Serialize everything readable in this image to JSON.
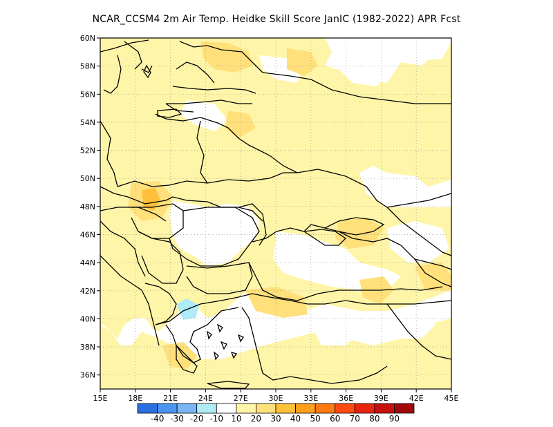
{
  "title": "NCAR_CCSM4  2m Air Temp. Heidke Skill Score JanIC (1982-2022) APR Fcst",
  "map": {
    "lon_range": [
      15,
      45
    ],
    "lat_range": [
      35,
      60
    ],
    "x_ticks": [
      "15E",
      "18E",
      "21E",
      "24E",
      "27E",
      "30E",
      "33E",
      "36E",
      "39E",
      "42E",
      "45E"
    ],
    "y_ticks": [
      "36N",
      "38N",
      "40N",
      "42N",
      "44N",
      "46N",
      "48N",
      "50N",
      "52N",
      "54N",
      "56N",
      "58N",
      "60N"
    ],
    "gridlines": "dotted",
    "background": "#ffffff",
    "land_outline_color": "#000000"
  },
  "colorbar": {
    "colors": [
      "#2b6fe0",
      "#4b95f0",
      "#7ab6f5",
      "#b0ecf7",
      "#ffffff",
      "#fff5a8",
      "#ffe07a",
      "#ffc13c",
      "#ff9f1c",
      "#ff7a12",
      "#ff4a10",
      "#e82410",
      "#c8100c",
      "#a0080a"
    ],
    "labels": [
      "-40",
      "-30",
      "-20",
      "-10",
      "10",
      "20",
      "30",
      "40",
      "50",
      "60",
      "70",
      "80",
      "90"
    ]
  },
  "shading": {
    "light_yellow": "#fff5a8",
    "yellow": "#ffe07a",
    "orange": "#ffc13c",
    "light_blue": "#b0ecf7"
  }
}
